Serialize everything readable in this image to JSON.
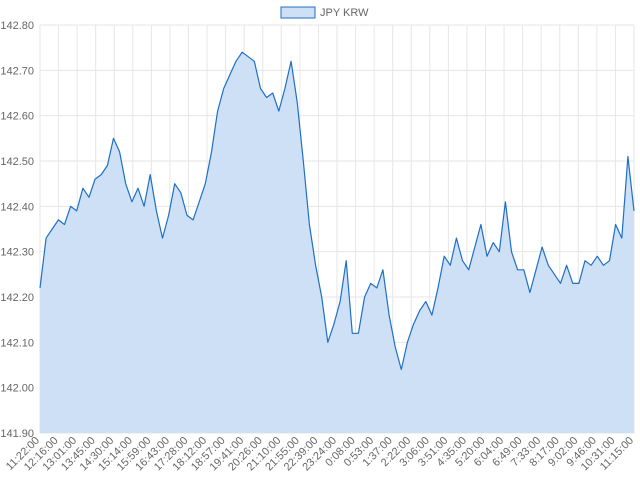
{
  "chart_data": {
    "type": "area",
    "series": [
      {
        "name": "JPY KRW",
        "points": [
          [
            "11:22:00",
            142.22
          ],
          [
            "11:33:00",
            142.33
          ],
          [
            "11:49:00",
            142.35
          ],
          [
            "12:01:00",
            142.37
          ],
          [
            "12:16:00",
            142.36
          ],
          [
            "12:31:00",
            142.4
          ],
          [
            "12:46:00",
            142.39
          ],
          [
            "13:01:00",
            142.44
          ],
          [
            "13:16:00",
            142.42
          ],
          [
            "13:31:00",
            142.46
          ],
          [
            "13:45:00",
            142.47
          ],
          [
            "14:00:00",
            142.49
          ],
          [
            "14:15:00",
            142.55
          ],
          [
            "14:30:00",
            142.52
          ],
          [
            "14:45:00",
            142.45
          ],
          [
            "15:00:00",
            142.41
          ],
          [
            "15:14:00",
            142.44
          ],
          [
            "15:29:00",
            142.4
          ],
          [
            "15:44:00",
            142.47
          ],
          [
            "15:59:00",
            142.39
          ],
          [
            "16:14:00",
            142.33
          ],
          [
            "16:29:00",
            142.38
          ],
          [
            "16:43:00",
            142.45
          ],
          [
            "16:58:00",
            142.43
          ],
          [
            "17:13:00",
            142.38
          ],
          [
            "17:28:00",
            142.37
          ],
          [
            "17:43:00",
            142.41
          ],
          [
            "17:58:00",
            142.45
          ],
          [
            "18:12:00",
            142.52
          ],
          [
            "18:27:00",
            142.61
          ],
          [
            "18:42:00",
            142.66
          ],
          [
            "18:57:00",
            142.69
          ],
          [
            "19:12:00",
            142.72
          ],
          [
            "19:27:00",
            142.74
          ],
          [
            "19:41:00",
            142.73
          ],
          [
            "19:56:00",
            142.72
          ],
          [
            "20:11:00",
            142.66
          ],
          [
            "20:26:00",
            142.64
          ],
          [
            "20:41:00",
            142.65
          ],
          [
            "20:56:00",
            142.61
          ],
          [
            "21:10:00",
            142.66
          ],
          [
            "21:25:00",
            142.72
          ],
          [
            "21:40:00",
            142.63
          ],
          [
            "21:55:00",
            142.5
          ],
          [
            "22:10:00",
            142.36
          ],
          [
            "22:25:00",
            142.27
          ],
          [
            "22:39:00",
            142.2
          ],
          [
            "22:54:00",
            142.1
          ],
          [
            "23:09:00",
            142.14
          ],
          [
            "23:24:00",
            142.19
          ],
          [
            "23:39:00",
            142.28
          ],
          [
            "23:54:00",
            142.12
          ],
          [
            "0:08:00",
            142.12
          ],
          [
            "0:23:00",
            142.2
          ],
          [
            "0:38:00",
            142.23
          ],
          [
            "0:53:00",
            142.22
          ],
          [
            "1:08:00",
            142.26
          ],
          [
            "1:23:00",
            142.16
          ],
          [
            "1:37:00",
            142.09
          ],
          [
            "1:52:00",
            142.04
          ],
          [
            "2:07:00",
            142.1
          ],
          [
            "2:22:00",
            142.14
          ],
          [
            "2:37:00",
            142.17
          ],
          [
            "2:51:00",
            142.19
          ],
          [
            "3:06:00",
            142.16
          ],
          [
            "3:21:00",
            142.22
          ],
          [
            "3:36:00",
            142.29
          ],
          [
            "3:51:00",
            142.27
          ],
          [
            "4:06:00",
            142.33
          ],
          [
            "4:21:00",
            142.28
          ],
          [
            "4:35:00",
            142.26
          ],
          [
            "4:50:00",
            142.31
          ],
          [
            "5:05:00",
            142.36
          ],
          [
            "5:20:00",
            142.29
          ],
          [
            "5:35:00",
            142.32
          ],
          [
            "5:50:00",
            142.3
          ],
          [
            "6:04:00",
            142.41
          ],
          [
            "6:19:00",
            142.3
          ],
          [
            "6:34:00",
            142.26
          ],
          [
            "6:49:00",
            142.26
          ],
          [
            "7:04:00",
            142.21
          ],
          [
            "7:19:00",
            142.26
          ],
          [
            "7:33:00",
            142.31
          ],
          [
            "7:48:00",
            142.27
          ],
          [
            "8:03:00",
            142.25
          ],
          [
            "8:17:00",
            142.23
          ],
          [
            "8:32:00",
            142.27
          ],
          [
            "8:47:00",
            142.23
          ],
          [
            "9:02:00",
            142.23
          ],
          [
            "9:17:00",
            142.28
          ],
          [
            "9:31:00",
            142.27
          ],
          [
            "9:46:00",
            142.29
          ],
          [
            "10:01:00",
            142.27
          ],
          [
            "10:16:00",
            142.28
          ],
          [
            "10:31:00",
            142.36
          ],
          [
            "10:46:00",
            142.33
          ],
          [
            "11:00:00",
            142.51
          ],
          [
            "11:15:00",
            142.39
          ]
        ]
      }
    ],
    "x_tick_labels": [
      "11:22:00",
      "12:16:00",
      "13:01:00",
      "13:45:00",
      "14:30:00",
      "15:14:00",
      "15:59:00",
      "16:43:00",
      "17:28:00",
      "18:12:00",
      "18:57:00",
      "19:41:00",
      "20:26:00",
      "21:10:00",
      "21:55:00",
      "22:39:00",
      "23:24:00",
      "0:08:00",
      "0:53:00",
      "1:37:00",
      "2:22:00",
      "3:06:00",
      "3:51:00",
      "4:35:00",
      "5:20:00",
      "6:04:00",
      "6:49:00",
      "7:33:00",
      "8:17:00",
      "9:02:00",
      "9:46:00",
      "10:31:00",
      "11:15:00"
    ],
    "y_ticks": [
      141.9,
      142.0,
      142.1,
      142.2,
      142.3,
      142.4,
      142.5,
      142.6,
      142.7,
      142.8
    ],
    "ylim": [
      141.9,
      142.8
    ],
    "grid": true,
    "legend_position": "top",
    "colors": {
      "line": "#1f6fc6",
      "fill": "#cde0f5",
      "grid": "#e6e6e6",
      "text": "#666666"
    }
  }
}
